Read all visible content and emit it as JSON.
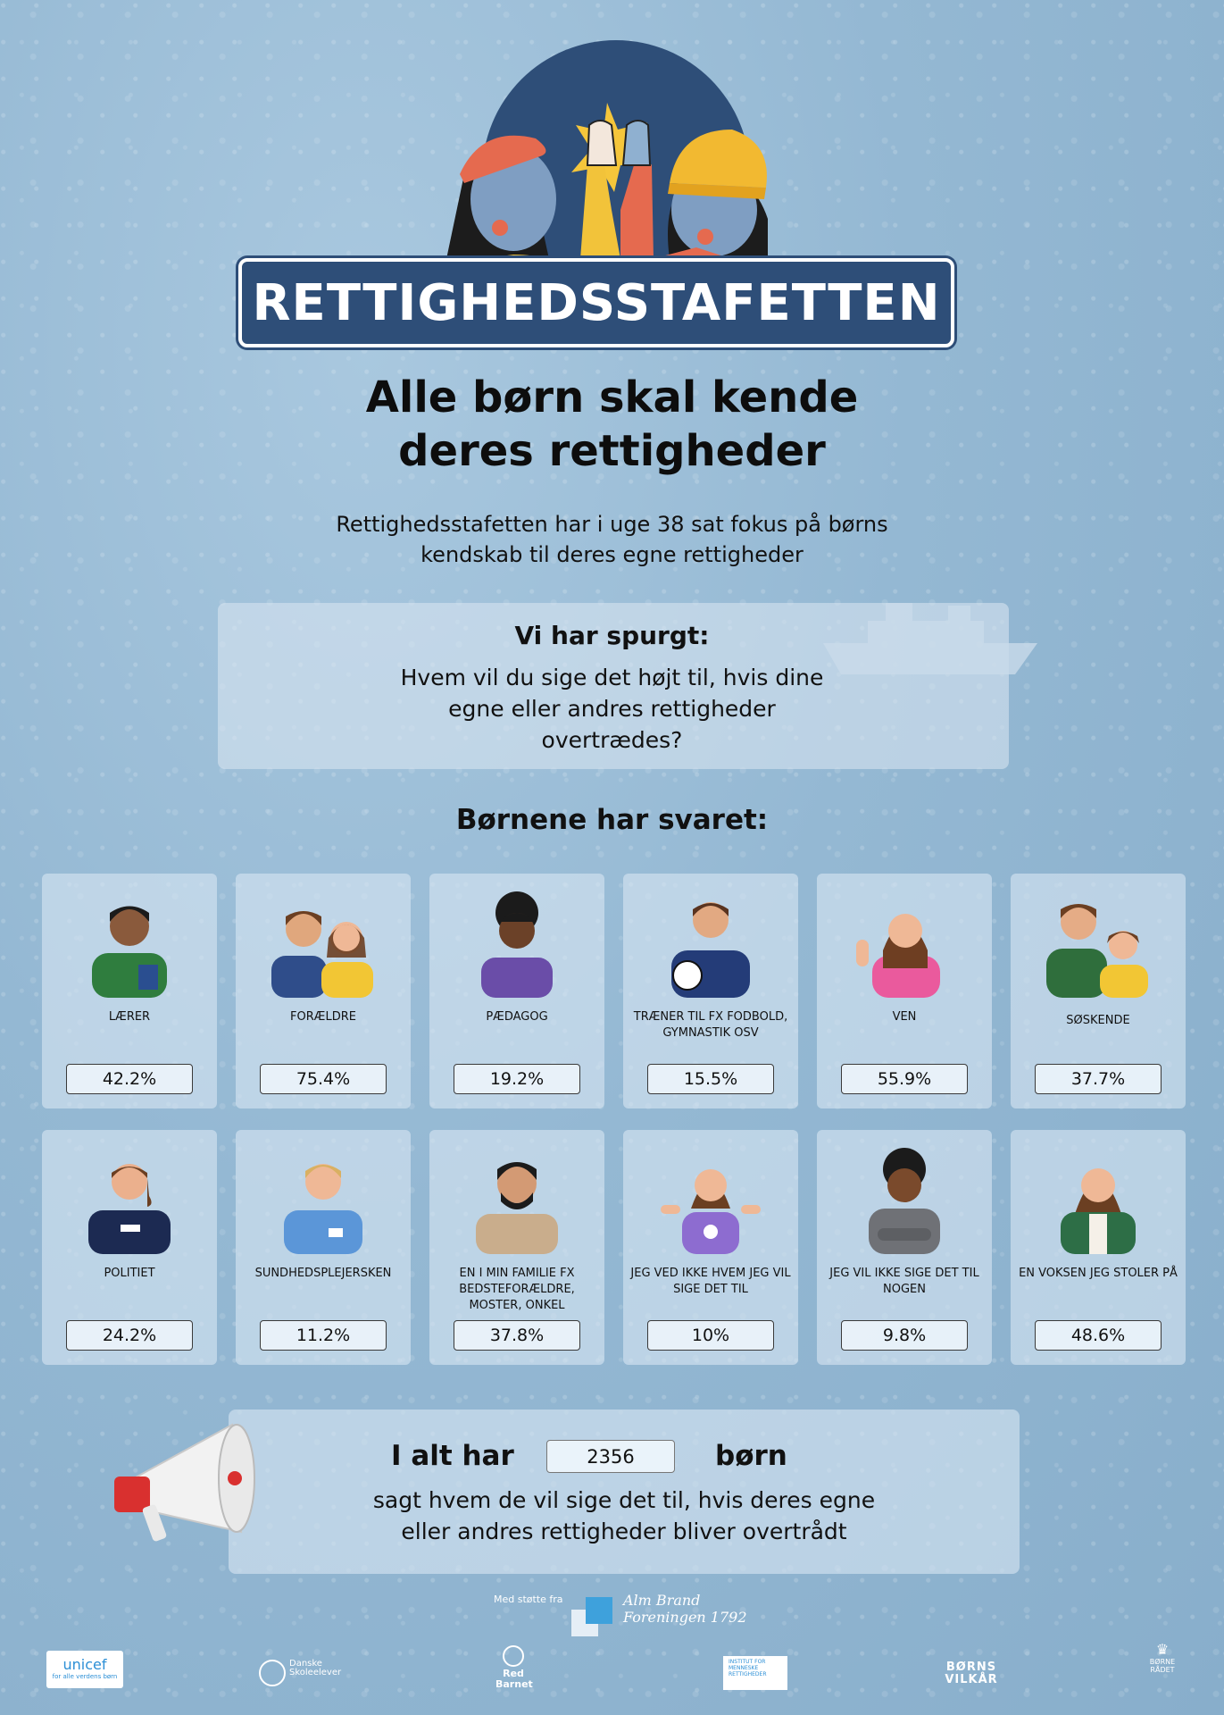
{
  "banner_title": "RETTIGHEDSSTAFETTEN",
  "headline": [
    "Alle børn skal kende",
    "deres rettigheder"
  ],
  "subtitle": [
    "Rettighedsstafetten har i uge 38 sat fokus på børns",
    "kendskab til deres egne rettigheder"
  ],
  "question": {
    "title": "Vi har spurgt:",
    "lines": [
      "Hvem vil du sige det højt til, hvis dine",
      "egne eller andres rettigheder",
      "overtrædes?"
    ]
  },
  "answers_title": "Børnene har svaret:",
  "answers": [
    {
      "label": "LÆRER",
      "value": "42.2%",
      "icon": "teacher-icon"
    },
    {
      "label": "FORÆLDRE",
      "value": "75.4%",
      "icon": "parents-icon"
    },
    {
      "label": "PÆDAGOG",
      "value": "19.2%",
      "icon": "educator-icon"
    },
    {
      "label": "TRÆNER TIL FX FODBOLD, GYMNASTIK OSV",
      "value": "15.5%",
      "icon": "coach-icon"
    },
    {
      "label": "VEN",
      "value": "55.9%",
      "icon": "friend-icon"
    },
    {
      "label": "SØSKENDE",
      "value": "37.7%",
      "icon": "siblings-icon"
    },
    {
      "label": "POLITIET",
      "value": "24.2%",
      "icon": "police-icon"
    },
    {
      "label": "SUNDHEDSPLEJERSKEN",
      "value": "11.2%",
      "icon": "nurse-icon"
    },
    {
      "label": "EN I MIN FAMILIE FX BEDSTEFORÆLDRE, MOSTER, ONKEL",
      "value": "37.8%",
      "icon": "family-member-icon"
    },
    {
      "label": "JEG VED IKKE HVEM JEG VIL SIGE DET TIL",
      "value": "10%",
      "icon": "unsure-child-icon"
    },
    {
      "label": "JEG VIL IKKE SIGE DET TIL NOGEN",
      "value": "9.8%",
      "icon": "silent-child-icon"
    },
    {
      "label": "EN VOKSEN JEG STOLER PÅ",
      "value": "48.6%",
      "icon": "trusted-adult-icon"
    }
  ],
  "total": {
    "prefix": "I alt har",
    "count": "2356",
    "suffix": "børn",
    "lines": [
      "sagt hvem de vil sige det til, hvis deres egne",
      "eller andres rettigheder bliver overtrådt"
    ]
  },
  "support": {
    "text": "Med støtte fra",
    "sponsor_lines": [
      "Alm Brand",
      "Foreningen 1792"
    ]
  },
  "footer_logos": {
    "unicef": "unicef",
    "unicef_tag": "for alle verdens børn",
    "skoleelever": [
      "Danske",
      "Skoleelever"
    ],
    "redbarnet": [
      "Red",
      "Barnet"
    ],
    "institut": [
      "INSTITUT FOR",
      "MENNESKE",
      "RETTIGHEDER"
    ],
    "bornsvilkar": [
      "BØRNS",
      "VILKÅR"
    ],
    "bornerad": [
      "BØRNE",
      "RÅDET"
    ]
  },
  "colors": {
    "banner": "#2e4e78",
    "background": "#94b8d3",
    "card": "#d6e5f2"
  }
}
